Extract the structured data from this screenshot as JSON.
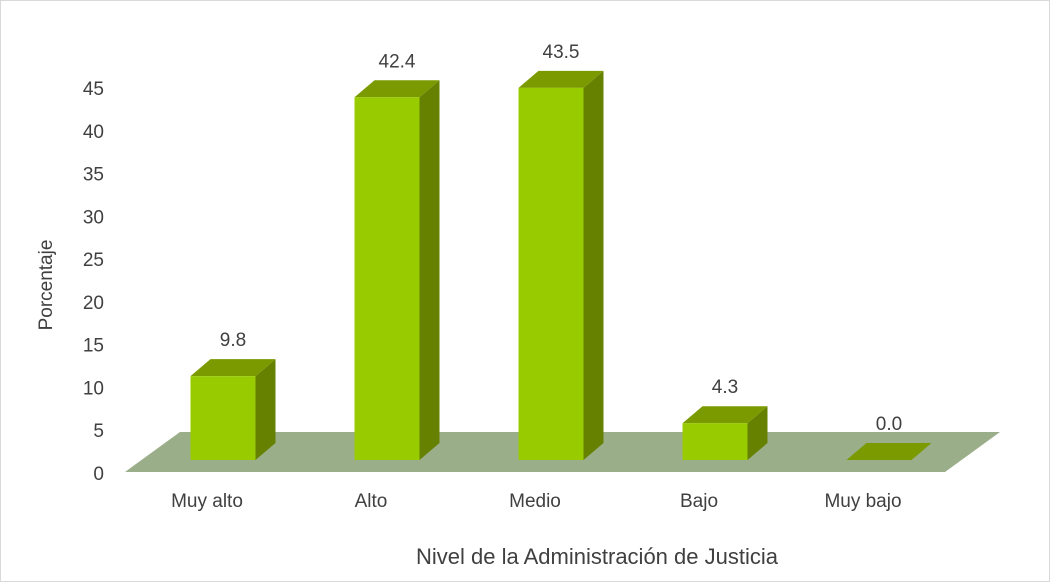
{
  "chart_data": {
    "type": "bar3d",
    "categories": [
      "Muy alto",
      "Alto",
      "Medio",
      "Bajo",
      "Muy bajo"
    ],
    "values": [
      9.8,
      42.4,
      43.5,
      4.3,
      0.0
    ],
    "value_labels": [
      "9.8",
      "42.4",
      "43.5",
      "4.3",
      "0.0"
    ],
    "color": "#99cc00",
    "side_color": "#668000",
    "top_color": "#7a9a00",
    "floor_color": "#9aae8a",
    "ylim": [
      0,
      45
    ],
    "yticks": [
      0,
      5,
      10,
      15,
      20,
      25,
      30,
      35,
      40,
      45
    ],
    "y_label": "Porcentaje",
    "x_label": "Nivel de la Administración de Justicia"
  }
}
